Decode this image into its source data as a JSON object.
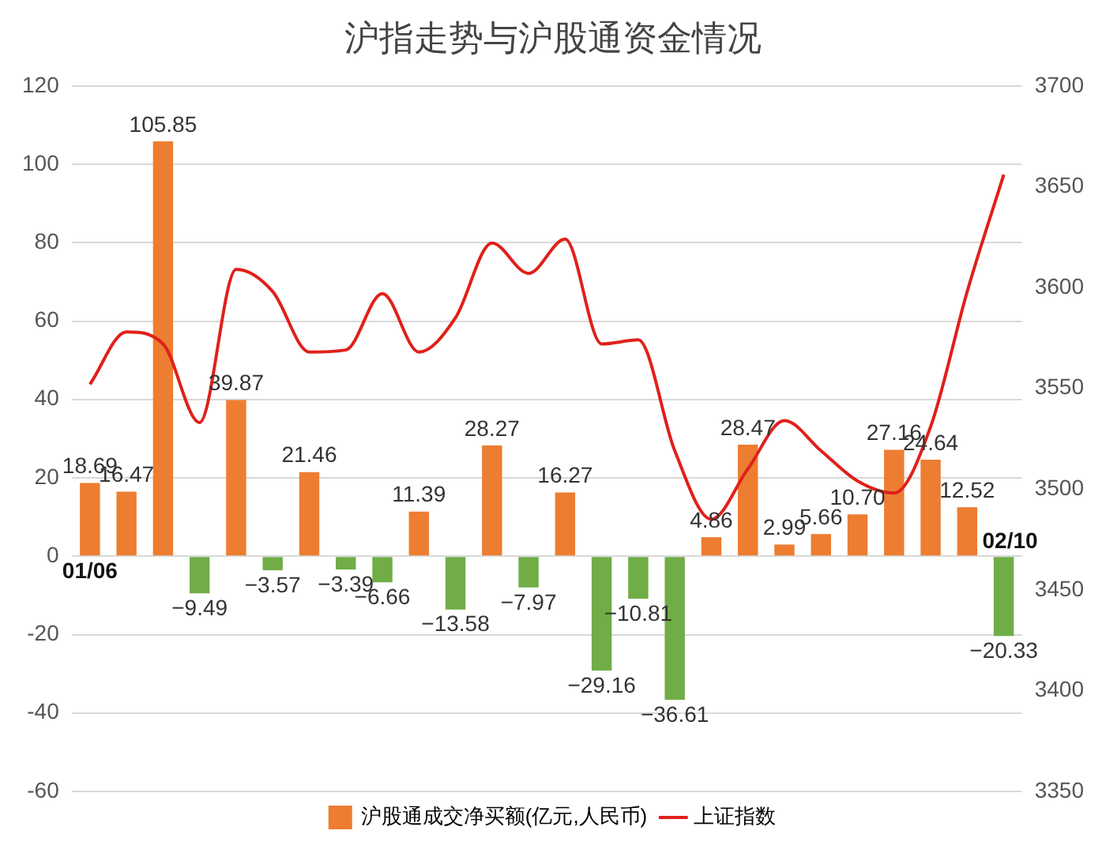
{
  "chart_data": {
    "type": "bar",
    "title": "沪指走势与沪股通资金情况",
    "categories": [
      "01/06",
      null,
      null,
      null,
      null,
      null,
      null,
      null,
      null,
      null,
      null,
      null,
      null,
      null,
      null,
      null,
      null,
      null,
      null,
      null,
      null,
      null,
      null,
      null,
      null,
      "02/10"
    ],
    "series": [
      {
        "name": "沪股通成交净买额(亿元,人民币)",
        "color": "#ed7d31",
        "value_labels": [
          "18.69",
          "16.47",
          "105.85",
          "−9.49",
          "39.87",
          "−3.57",
          "21.46",
          "−3.39",
          "−6.66",
          "11.39",
          "−13.58",
          "28.27",
          "−7.97",
          "16.27",
          "−29.16",
          "−10.81",
          "−36.61",
          "4.86",
          "28.47",
          "2.99",
          "5.66",
          "10.70",
          "27.16",
          "24.64",
          "12.52",
          "−20.33"
        ],
        "colors": [
          "#ed7d31",
          "#ed7d31",
          "#ed7d31",
          "#70ad47",
          "#ed7d31",
          "#70ad47",
          "#ed7d31",
          "#70ad47",
          "#70ad47",
          "#ed7d31",
          "#70ad47",
          "#ed7d31",
          "#70ad47",
          "#ed7d31",
          "#70ad47",
          "#70ad47",
          "#70ad47",
          "#ed7d31",
          "#ed7d31",
          "#ed7d31",
          "#ed7d31",
          "#ed7d31",
          "#ed7d31",
          "#ed7d31",
          "#ed7d31",
          "#70ad47"
        ],
        "values": [
          18.69,
          16.47,
          105.85,
          -9.49,
          39.87,
          -3.57,
          21.46,
          -3.39,
          -6.66,
          11.39,
          -13.58,
          28.27,
          -7.97,
          16.27,
          -29.16,
          -10.81,
          -36.61,
          4.86,
          28.47,
          2.99,
          5.66,
          10.7,
          27.16,
          24.64,
          12.52,
          -20.33
        ]
      },
      {
        "name": "上证指数",
        "type": "line",
        "axis": "y2",
        "color": "#e0201b",
        "values": [
          3552,
          3578,
          3572,
          3533,
          3609,
          3598,
          3568,
          3569,
          3597,
          3568,
          3585,
          3622,
          3607,
          3624,
          3572,
          3574,
          3519,
          3485,
          3510,
          3534,
          3519,
          3504,
          3498,
          3531,
          3598,
          3656
        ]
      }
    ],
    "ylim": [
      -60,
      120
    ],
    "yticks": [
      -60,
      -40,
      -20,
      0,
      20,
      40,
      60,
      80,
      100,
      120
    ],
    "y2lim": [
      3350,
      3700
    ],
    "y2ticks": [
      3350,
      3400,
      3450,
      3500,
      3550,
      3600,
      3650,
      3700
    ],
    "grid": "y",
    "legend": "bottom",
    "marker": "none"
  }
}
